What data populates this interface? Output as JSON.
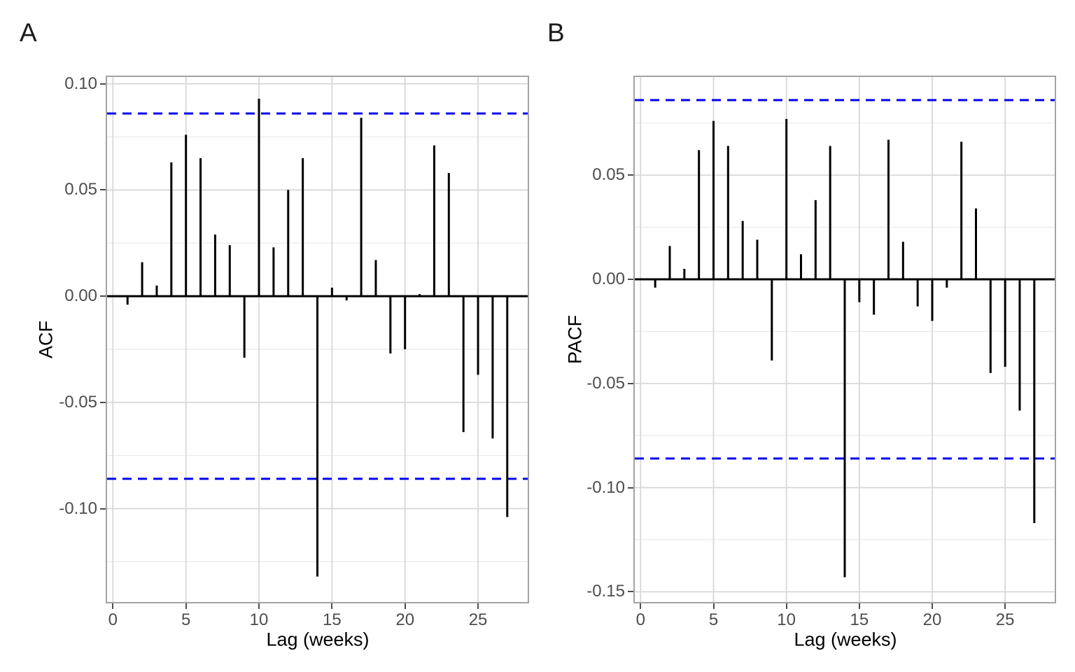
{
  "colors": {
    "background": "#ffffff",
    "bar": "#000000",
    "zero_line": "#000000",
    "ci_line": "#0000EE",
    "grid_major": "#d6d6d6",
    "grid_minor": "#ebebeb",
    "panel_border": "#a3a3a3",
    "axis_text": "#4d4d4d",
    "axis_title": "#000000"
  },
  "chart_data": [
    {
      "type": "bar",
      "panel_tag": "A",
      "title": "",
      "xlabel": "Lag (weeks)",
      "ylabel": "ACF",
      "legend": false,
      "grid": true,
      "ci_upper": 0.086,
      "ci_lower": -0.086,
      "xlim": [
        -0.4,
        28.4
      ],
      "ylim": [
        -0.144,
        0.1032
      ],
      "x": [
        1,
        2,
        3,
        4,
        5,
        6,
        7,
        8,
        9,
        10,
        11,
        12,
        13,
        14,
        15,
        16,
        17,
        18,
        19,
        20,
        21,
        22,
        23,
        24,
        25,
        26,
        27
      ],
      "values": [
        -0.004,
        0.016,
        0.005,
        0.063,
        0.076,
        0.065,
        0.029,
        0.024,
        -0.029,
        0.093,
        0.023,
        0.05,
        0.065,
        -0.132,
        0.004,
        -0.002,
        0.084,
        0.017,
        -0.027,
        -0.025,
        0.001,
        0.071,
        0.058,
        -0.064,
        -0.037,
        -0.067,
        -0.104
      ],
      "xticks": [
        0,
        5,
        10,
        15,
        20,
        25
      ],
      "xtick_labels": [
        "0",
        "5",
        "10",
        "15",
        "20",
        "25"
      ],
      "yticks": [
        0.1,
        0.05,
        0.0,
        -0.05,
        -0.1
      ],
      "ytick_labels": [
        "0.10",
        "0.05",
        "0.00",
        "-0.05",
        "-0.10"
      ],
      "y_minor": [
        0.075,
        0.025,
        -0.025,
        -0.075,
        -0.125
      ]
    },
    {
      "type": "bar",
      "panel_tag": "B",
      "title": "",
      "xlabel": "Lag (weeks)",
      "ylabel": "PACF",
      "legend": false,
      "grid": true,
      "ci_upper": 0.086,
      "ci_lower": -0.086,
      "xlim": [
        -0.4,
        28.4
      ],
      "ylim": [
        -0.1549,
        0.0971
      ],
      "x": [
        1,
        2,
        3,
        4,
        5,
        6,
        7,
        8,
        9,
        10,
        11,
        12,
        13,
        14,
        15,
        16,
        17,
        18,
        19,
        20,
        21,
        22,
        23,
        24,
        25,
        26,
        27
      ],
      "values": [
        -0.004,
        0.016,
        0.005,
        0.062,
        0.076,
        0.064,
        0.028,
        0.019,
        -0.039,
        0.077,
        0.012,
        0.038,
        0.064,
        -0.143,
        -0.011,
        -0.017,
        0.067,
        0.018,
        -0.013,
        -0.02,
        -0.004,
        0.066,
        0.034,
        -0.045,
        -0.042,
        -0.063,
        -0.117
      ],
      "xticks": [
        0,
        5,
        10,
        15,
        20,
        25
      ],
      "xtick_labels": [
        "0",
        "5",
        "10",
        "15",
        "20",
        "25"
      ],
      "yticks": [
        0.05,
        0.0,
        -0.05,
        -0.1,
        -0.15
      ],
      "ytick_labels": [
        "0.05",
        "0.00",
        "-0.05",
        "-0.10",
        "-0.15"
      ],
      "y_minor": [
        0.075,
        0.025,
        -0.025,
        -0.075,
        -0.125
      ]
    }
  ]
}
